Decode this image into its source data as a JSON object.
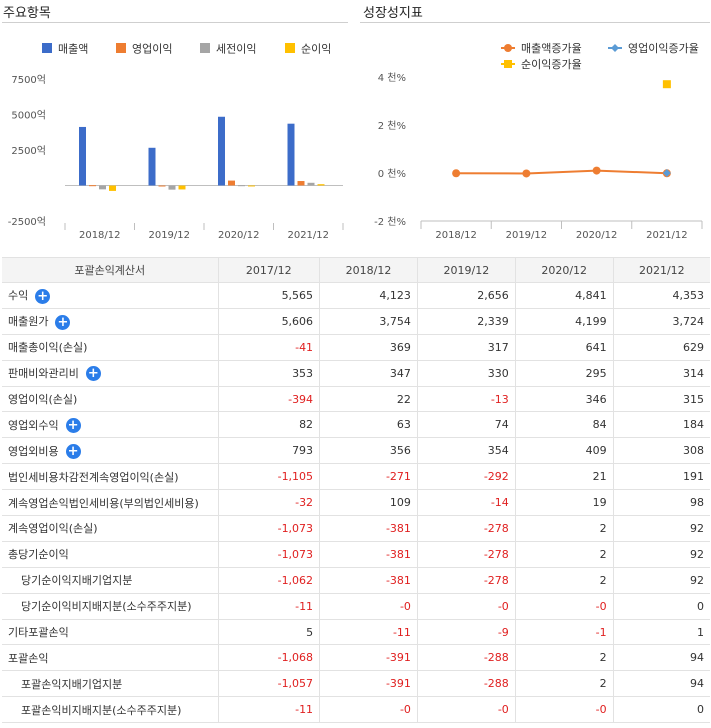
{
  "panels": {
    "left_title": "주요항목",
    "right_title": "성장성지표"
  },
  "chart_data": [
    {
      "type": "bar",
      "title": "주요항목",
      "categories": [
        "2018/12",
        "2019/12",
        "2020/12",
        "2021/12"
      ],
      "series": [
        {
          "name": "매출액",
          "color": "#3c6cc9",
          "values": [
            4123,
            2656,
            4841,
            4353
          ]
        },
        {
          "name": "영업이익",
          "color": "#ee7d31",
          "values": [
            22,
            -13,
            346,
            315
          ]
        },
        {
          "name": "세전이익",
          "color": "#a5a5a5",
          "values": [
            -271,
            -292,
            21,
            191
          ]
        },
        {
          "name": "순이익",
          "color": "#ffc000",
          "values": [
            -381,
            -278,
            2,
            92
          ]
        }
      ],
      "yticks": [
        7500,
        5000,
        2500,
        -2500
      ],
      "ytick_labels": [
        "7500억",
        "5000억",
        "2500억",
        "-2500억"
      ],
      "ylim": [
        -2500,
        7500
      ],
      "legend_position": "top",
      "grid": false
    },
    {
      "type": "line",
      "title": "성장성지표",
      "categories": [
        "2018/12",
        "2019/12",
        "2020/12",
        "2021/12"
      ],
      "series": [
        {
          "name": "매출액증가율",
          "color": "#ee7d31",
          "marker": "circle",
          "values": [
            -0.01,
            -0.02,
            0.1,
            -0.01
          ]
        },
        {
          "name": "영업이익증가율",
          "color": "#5b9bd5",
          "marker": "diamond",
          "values": [
            null,
            null,
            null,
            0.0
          ]
        },
        {
          "name": "순이익증가율",
          "color": "#ffc000",
          "marker": "square",
          "values": [
            null,
            null,
            null,
            3.7
          ]
        }
      ],
      "yticks": [
        4,
        2,
        0,
        -2
      ],
      "ytick_labels": [
        "4 천%",
        "2 천%",
        "0 천%",
        "-2 천%"
      ],
      "ylim": [
        -2,
        4
      ],
      "legend_position": "top",
      "grid": false
    }
  ],
  "table": {
    "header": [
      "포괄손익계산서",
      "2017/12",
      "2018/12",
      "2019/12",
      "2020/12",
      "2021/12"
    ],
    "rows": [
      {
        "label": "수익",
        "expand": true,
        "indent": false,
        "values": [
          "5,565",
          "4,123",
          "2,656",
          "4,841",
          "4,353"
        ]
      },
      {
        "label": "매출원가",
        "expand": true,
        "indent": false,
        "values": [
          "5,606",
          "3,754",
          "2,339",
          "4,199",
          "3,724"
        ]
      },
      {
        "label": "매출총이익(손실)",
        "expand": false,
        "indent": false,
        "values": [
          "-41",
          "369",
          "317",
          "641",
          "629"
        ]
      },
      {
        "label": "판매비와관리비",
        "expand": true,
        "indent": false,
        "values": [
          "353",
          "347",
          "330",
          "295",
          "314"
        ]
      },
      {
        "label": "영업이익(손실)",
        "expand": false,
        "indent": false,
        "values": [
          "-394",
          "22",
          "-13",
          "346",
          "315"
        ]
      },
      {
        "label": "영업외수익",
        "expand": true,
        "indent": false,
        "values": [
          "82",
          "63",
          "74",
          "84",
          "184"
        ]
      },
      {
        "label": "영업외비용",
        "expand": true,
        "indent": false,
        "values": [
          "793",
          "356",
          "354",
          "409",
          "308"
        ]
      },
      {
        "label": "법인세비용차감전계속영업이익(손실)",
        "expand": false,
        "indent": false,
        "values": [
          "-1,105",
          "-271",
          "-292",
          "21",
          "191"
        ]
      },
      {
        "label": "계속영업손익법인세비용(부의법인세비용)",
        "expand": false,
        "indent": false,
        "values": [
          "-32",
          "109",
          "-14",
          "19",
          "98"
        ]
      },
      {
        "label": "계속영업이익(손실)",
        "expand": false,
        "indent": false,
        "values": [
          "-1,073",
          "-381",
          "-278",
          "2",
          "92"
        ]
      },
      {
        "label": "총당기순이익",
        "expand": false,
        "indent": false,
        "values": [
          "-1,073",
          "-381",
          "-278",
          "2",
          "92"
        ]
      },
      {
        "label": "당기순이익지배기업지분",
        "expand": false,
        "indent": true,
        "values": [
          "-1,062",
          "-381",
          "-278",
          "2",
          "92"
        ]
      },
      {
        "label": "당기순이익비지배지분(소수주주지분)",
        "expand": false,
        "indent": true,
        "values": [
          "-11",
          "-0",
          "-0",
          "-0",
          "0"
        ]
      },
      {
        "label": "기타포괄손익",
        "expand": false,
        "indent": false,
        "values": [
          "5",
          "-11",
          "-9",
          "-1",
          "1"
        ]
      },
      {
        "label": "포괄손익",
        "expand": false,
        "indent": false,
        "values": [
          "-1,068",
          "-391",
          "-288",
          "2",
          "94"
        ]
      },
      {
        "label": "포괄손익지배기업지분",
        "expand": false,
        "indent": true,
        "values": [
          "-1,057",
          "-391",
          "-288",
          "2",
          "94"
        ]
      },
      {
        "label": "포괄손익비지배지분(소수주주지분)",
        "expand": false,
        "indent": true,
        "values": [
          "-11",
          "-0",
          "-0",
          "-0",
          "0"
        ]
      }
    ]
  },
  "colors": {
    "negative": "#e02020",
    "expand_button": "#2b7de9"
  },
  "icons": {
    "expand": "plus-circle-icon"
  }
}
